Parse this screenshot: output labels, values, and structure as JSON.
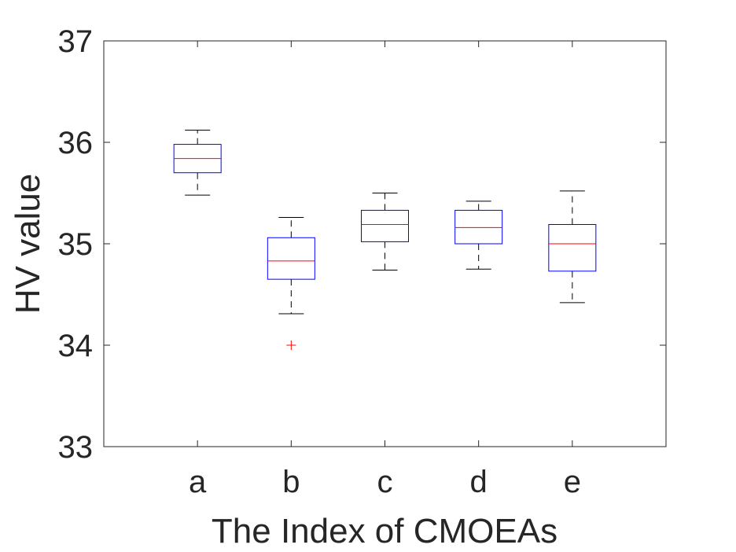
{
  "chart_data": {
    "type": "box",
    "title": "",
    "xlabel": "The Index of CMOEAs",
    "ylabel": "HV value",
    "ylim": [
      33,
      37
    ],
    "yticks": [
      33,
      34,
      35,
      36,
      37
    ],
    "categories": [
      "a",
      "b",
      "c",
      "d",
      "e"
    ],
    "boxes": [
      {
        "label": "a",
        "whisker_low": 35.48,
        "q1": 35.7,
        "median": 35.84,
        "q3": 35.98,
        "whisker_high": 36.12,
        "outliers": []
      },
      {
        "label": "b",
        "whisker_low": 34.31,
        "q1": 34.65,
        "median": 34.83,
        "q3": 35.06,
        "whisker_high": 35.26,
        "outliers": [
          34.0
        ]
      },
      {
        "label": "c",
        "whisker_low": 34.74,
        "q1": 35.02,
        "median": 35.19,
        "q3": 35.33,
        "whisker_high": 35.5,
        "outliers": []
      },
      {
        "label": "d",
        "whisker_low": 34.75,
        "q1": 35.0,
        "median": 35.16,
        "q3": 35.33,
        "whisker_high": 35.42,
        "outliers": []
      },
      {
        "label": "e",
        "whisker_low": 34.42,
        "q1": 34.73,
        "median": 35.0,
        "q3": 35.19,
        "whisker_high": 35.52,
        "outliers": []
      }
    ],
    "grid": false,
    "colors": {
      "box": "#0000ff",
      "median": "#ff0000",
      "whisker": "#000000",
      "outlier": "#ff0000",
      "axis": "#262626"
    }
  }
}
